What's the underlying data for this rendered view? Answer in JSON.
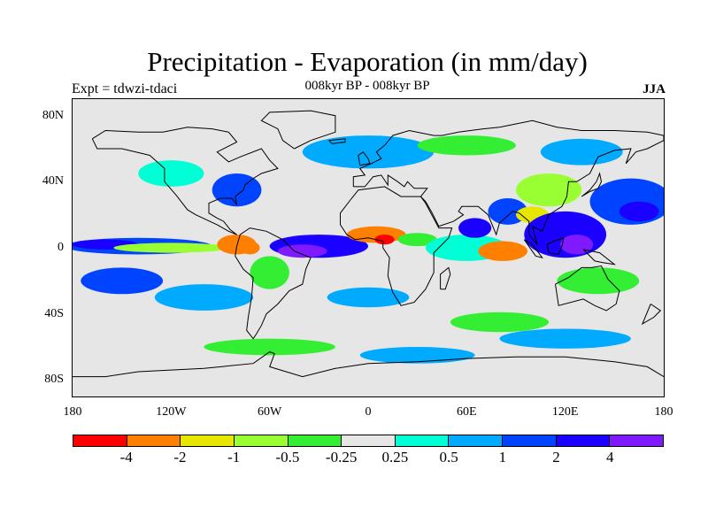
{
  "title": "Precipitation - Evaporation (in mm/day)",
  "subtitle": "008kyr BP - 008kyr BP",
  "left_label": "Expt = tdwzi-tdaci",
  "right_label": "JJA",
  "colors": {
    "map_background": "#e6e6e6",
    "land_outline": "#000000"
  },
  "chart_data": {
    "type": "heatmap",
    "variable": "Precipitation - Evaporation",
    "units": "mm/day",
    "season": "JJA",
    "projection": "cylindrical-equidistant",
    "xlim": [
      -180,
      180
    ],
    "ylim": [
      -90,
      90
    ],
    "x_ticks": [
      {
        "value": -180,
        "label": "180"
      },
      {
        "value": -120,
        "label": "120W"
      },
      {
        "value": -60,
        "label": "60W"
      },
      {
        "value": 0,
        "label": "0"
      },
      {
        "value": 60,
        "label": "60E"
      },
      {
        "value": 120,
        "label": "120E"
      },
      {
        "value": 180,
        "label": "180"
      }
    ],
    "y_ticks": [
      {
        "value": 80,
        "label": "80N"
      },
      {
        "value": 40,
        "label": "40N"
      },
      {
        "value": 0,
        "label": "0"
      },
      {
        "value": -40,
        "label": "40S"
      },
      {
        "value": -80,
        "label": "80S"
      }
    ],
    "colorbar": {
      "colors": [
        "#ff0000",
        "#ff7f00",
        "#e6e600",
        "#99ff33",
        "#33ee33",
        "#e6e6e6",
        "#00ffd5",
        "#00aaff",
        "#0044ff",
        "#1a00ff",
        "#7f1aff"
      ],
      "levels": [
        -4,
        -2,
        -1,
        -0.5,
        -0.25,
        0.25,
        0.5,
        1,
        2,
        4
      ],
      "labels": [
        "-4",
        "-2",
        "-1",
        "-0.5",
        "-0.25",
        "0.25",
        "0.5",
        "1",
        "2",
        "4"
      ]
    },
    "regions": [
      {
        "lon": -140,
        "lat": 1,
        "rlon": 45,
        "rlat": 5,
        "value": 1.5
      },
      {
        "lon": -160,
        "lat": 2,
        "rlon": 20,
        "rlat": 3,
        "value": 2.5
      },
      {
        "lon": -120,
        "lat": 0,
        "rlon": 35,
        "rlat": 3,
        "value": -0.7
      },
      {
        "lon": -80,
        "lat": 2,
        "rlon": 12,
        "rlat": 6,
        "value": -2.5
      },
      {
        "lon": -72,
        "lat": 0,
        "rlon": 6,
        "rlat": 4,
        "value": -3
      },
      {
        "lon": -30,
        "lat": 1,
        "rlon": 30,
        "rlat": 7,
        "value": 3
      },
      {
        "lon": -40,
        "lat": -2,
        "rlon": 15,
        "rlat": 4,
        "value": 5
      },
      {
        "lon": 5,
        "lat": 8,
        "rlon": 18,
        "rlat": 5,
        "value": -2.5
      },
      {
        "lon": 10,
        "lat": 5,
        "rlon": 6,
        "rlat": 3,
        "value": -5
      },
      {
        "lon": 30,
        "lat": 5,
        "rlon": 12,
        "rlat": 4,
        "value": -0.4
      },
      {
        "lon": 60,
        "lat": 0,
        "rlon": 25,
        "rlat": 8,
        "value": 0.4
      },
      {
        "lon": 65,
        "lat": 12,
        "rlon": 10,
        "rlat": 6,
        "value": 2.5
      },
      {
        "lon": 82,
        "lat": -2,
        "rlon": 15,
        "rlat": 6,
        "value": -2.5
      },
      {
        "lon": 85,
        "lat": 22,
        "rlon": 12,
        "rlat": 8,
        "value": 1.5
      },
      {
        "lon": 100,
        "lat": 20,
        "rlon": 10,
        "rlat": 5,
        "value": -1.5
      },
      {
        "lon": 120,
        "lat": 8,
        "rlon": 25,
        "rlat": 14,
        "value": 2.5
      },
      {
        "lon": 127,
        "lat": 2,
        "rlon": 10,
        "rlat": 6,
        "value": 5
      },
      {
        "lon": 110,
        "lat": 35,
        "rlon": 20,
        "rlat": 10,
        "value": -0.6
      },
      {
        "lon": 160,
        "lat": 28,
        "rlon": 25,
        "rlat": 14,
        "value": 1.5
      },
      {
        "lon": 165,
        "lat": 22,
        "rlon": 12,
        "rlat": 6,
        "value": 2.5
      },
      {
        "lon": 0,
        "lat": 58,
        "rlon": 40,
        "rlat": 10,
        "value": 0.6
      },
      {
        "lon": 60,
        "lat": 62,
        "rlon": 30,
        "rlat": 6,
        "value": -0.4
      },
      {
        "lon": 130,
        "lat": 58,
        "rlon": 25,
        "rlat": 8,
        "value": 0.6
      },
      {
        "lon": -80,
        "lat": 35,
        "rlon": 15,
        "rlat": 10,
        "value": 1.2
      },
      {
        "lon": -120,
        "lat": 45,
        "rlon": 20,
        "rlat": 8,
        "value": 0.4
      },
      {
        "lon": -150,
        "lat": -20,
        "rlon": 25,
        "rlat": 8,
        "value": 1.2
      },
      {
        "lon": -100,
        "lat": -30,
        "rlon": 30,
        "rlat": 8,
        "value": 0.6
      },
      {
        "lon": 0,
        "lat": -30,
        "rlon": 25,
        "rlat": 6,
        "value": 0.6
      },
      {
        "lon": 80,
        "lat": -45,
        "rlon": 30,
        "rlat": 6,
        "value": -0.4
      },
      {
        "lon": 120,
        "lat": -55,
        "rlon": 40,
        "rlat": 6,
        "value": 0.6
      },
      {
        "lon": -60,
        "lat": -60,
        "rlon": 40,
        "rlat": 5,
        "value": -0.4
      },
      {
        "lon": 30,
        "lat": -65,
        "rlon": 35,
        "rlat": 5,
        "value": 0.6
      },
      {
        "lon": 140,
        "lat": -20,
        "rlon": 25,
        "rlat": 8,
        "value": -0.4
      },
      {
        "lon": -60,
        "lat": -15,
        "rlon": 12,
        "rlat": 10,
        "value": -0.3
      }
    ]
  }
}
